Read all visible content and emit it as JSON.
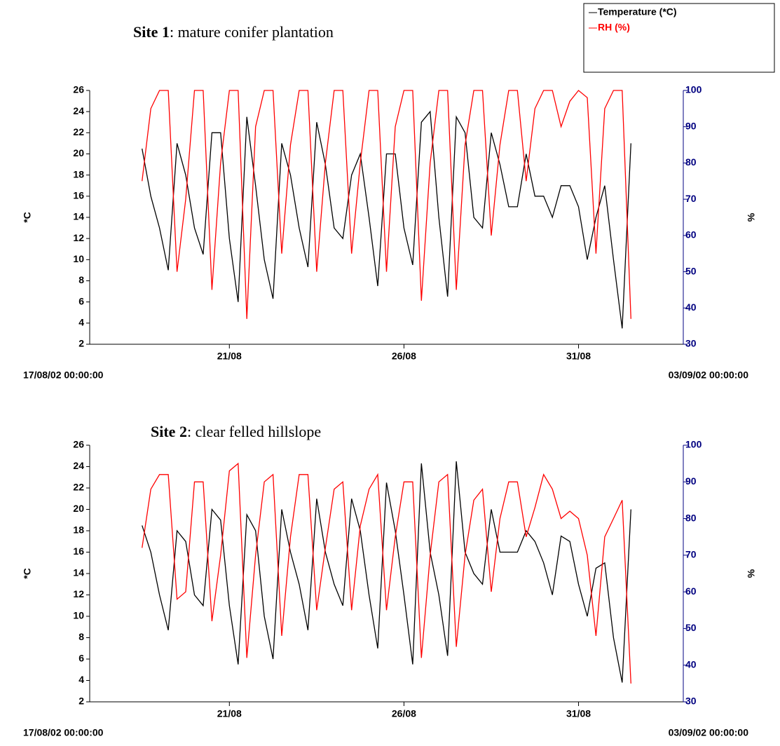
{
  "chart_data": [
    {
      "type": "line",
      "title": "Site 1: mature conifer plantation",
      "ylabel": "*C",
      "y2label": "%",
      "legend": "top-right",
      "xlim": [
        "17/08/02 00:00:00",
        "03/09/02 00:00:00"
      ],
      "xticks": [
        {
          "value": "21/08/02 00:00:00",
          "label": "21/08"
        },
        {
          "value": "26/08/02 00:00:00",
          "label": "26/08"
        },
        {
          "value": "31/08/02 00:00:00",
          "label": "31/08"
        }
      ],
      "ylim": [
        2,
        26
      ],
      "yticks": [
        2,
        4,
        6,
        8,
        10,
        12,
        14,
        16,
        18,
        20,
        22,
        24,
        26
      ],
      "y2lim": [
        30,
        100
      ],
      "y2ticks": [
        30,
        40,
        50,
        60,
        70,
        80,
        90,
        100
      ],
      "x": [
        "18/08/02 12:00:00",
        "18/08/02 18:00:00",
        "19/08/02 00:00:00",
        "19/08/02 06:00:00",
        "19/08/02 12:00:00",
        "19/08/02 18:00:00",
        "20/08/02 00:00:00",
        "20/08/02 06:00:00",
        "20/08/02 12:00:00",
        "20/08/02 18:00:00",
        "21/08/02 00:00:00",
        "21/08/02 06:00:00",
        "21/08/02 12:00:00",
        "21/08/02 18:00:00",
        "22/08/02 00:00:00",
        "22/08/02 06:00:00",
        "22/08/02 12:00:00",
        "22/08/02 18:00:00",
        "23/08/02 00:00:00",
        "23/08/02 06:00:00",
        "23/08/02 12:00:00",
        "23/08/02 18:00:00",
        "24/08/02 00:00:00",
        "24/08/02 06:00:00",
        "24/08/02 12:00:00",
        "24/08/02 18:00:00",
        "25/08/02 00:00:00",
        "25/08/02 06:00:00",
        "25/08/02 12:00:00",
        "25/08/02 18:00:00",
        "26/08/02 00:00:00",
        "26/08/02 06:00:00",
        "26/08/02 12:00:00",
        "26/08/02 18:00:00",
        "27/08/02 00:00:00",
        "27/08/02 06:00:00",
        "27/08/02 12:00:00",
        "27/08/02 18:00:00",
        "28/08/02 00:00:00",
        "28/08/02 06:00:00",
        "28/08/02 12:00:00",
        "28/08/02 18:00:00",
        "29/08/02 00:00:00",
        "29/08/02 06:00:00",
        "29/08/02 12:00:00",
        "29/08/02 18:00:00",
        "30/08/02 00:00:00",
        "30/08/02 06:00:00",
        "30/08/02 12:00:00",
        "30/08/02 18:00:00",
        "31/08/02 00:00:00",
        "31/08/02 06:00:00",
        "31/08/02 12:00:00",
        "31/08/02 18:00:00",
        "01/09/02 00:00:00",
        "01/09/02 06:00:00",
        "01/09/02 12:00:00"
      ],
      "series": [
        {
          "name": "Temperature (*C)",
          "color": "#000000",
          "values": [
            20.5,
            16,
            13,
            9,
            21,
            18,
            13,
            10.5,
            22,
            22,
            12,
            6,
            23.5,
            17,
            10,
            6.3,
            21,
            18,
            13,
            9.3,
            23,
            19,
            13,
            12,
            18,
            20,
            14,
            7.5,
            20,
            20,
            13,
            9.5,
            23,
            24,
            14,
            6.5,
            23.5,
            22,
            14,
            13,
            22,
            19,
            15,
            15,
            20,
            16,
            16,
            14,
            17,
            17,
            15,
            10,
            14,
            17,
            10,
            3.5,
            21
          ]
        },
        {
          "name": "RH (%)",
          "color": "#ff0000",
          "axis": "y2",
          "values": [
            75,
            95,
            100,
            100,
            50,
            70,
            100,
            100,
            45,
            80,
            100,
            100,
            37,
            90,
            100,
            100,
            55,
            85,
            100,
            100,
            50,
            80,
            100,
            100,
            55,
            80,
            100,
            100,
            50,
            90,
            100,
            100,
            42,
            80,
            100,
            100,
            45,
            85,
            100,
            100,
            60,
            85,
            100,
            100,
            75,
            95,
            100,
            100,
            90,
            97,
            100,
            98,
            55,
            95,
            100,
            100,
            37
          ]
        }
      ]
    },
    {
      "type": "line",
      "title": "Site 2: clear felled hillslope",
      "ylabel": "*C",
      "y2label": "%",
      "xlim": [
        "17/08/02 00:00:00",
        "03/09/02 00:00:00"
      ],
      "xticks": [
        {
          "value": "21/08/02 00:00:00",
          "label": "21/08"
        },
        {
          "value": "26/08/02 00:00:00",
          "label": "26/08"
        },
        {
          "value": "31/08/02 00:00:00",
          "label": "31/08"
        }
      ],
      "ylim": [
        2,
        26
      ],
      "yticks": [
        2,
        4,
        6,
        8,
        10,
        12,
        14,
        16,
        18,
        20,
        22,
        24,
        26
      ],
      "y2lim": [
        30,
        100
      ],
      "y2ticks": [
        30,
        40,
        50,
        60,
        70,
        80,
        90,
        100
      ],
      "x": [
        "18/08/02 12:00:00",
        "18/08/02 18:00:00",
        "19/08/02 00:00:00",
        "19/08/02 06:00:00",
        "19/08/02 12:00:00",
        "19/08/02 18:00:00",
        "20/08/02 00:00:00",
        "20/08/02 06:00:00",
        "20/08/02 12:00:00",
        "20/08/02 18:00:00",
        "21/08/02 00:00:00",
        "21/08/02 06:00:00",
        "21/08/02 12:00:00",
        "21/08/02 18:00:00",
        "22/08/02 00:00:00",
        "22/08/02 06:00:00",
        "22/08/02 12:00:00",
        "22/08/02 18:00:00",
        "23/08/02 00:00:00",
        "23/08/02 06:00:00",
        "23/08/02 12:00:00",
        "23/08/02 18:00:00",
        "24/08/02 00:00:00",
        "24/08/02 06:00:00",
        "24/08/02 12:00:00",
        "24/08/02 18:00:00",
        "25/08/02 00:00:00",
        "25/08/02 06:00:00",
        "25/08/02 12:00:00",
        "25/08/02 18:00:00",
        "26/08/02 00:00:00",
        "26/08/02 06:00:00",
        "26/08/02 12:00:00",
        "26/08/02 18:00:00",
        "27/08/02 00:00:00",
        "27/08/02 06:00:00",
        "27/08/02 12:00:00",
        "27/08/02 18:00:00",
        "28/08/02 00:00:00",
        "28/08/02 06:00:00",
        "28/08/02 12:00:00",
        "28/08/02 18:00:00",
        "29/08/02 00:00:00",
        "29/08/02 06:00:00",
        "29/08/02 12:00:00",
        "29/08/02 18:00:00",
        "30/08/02 00:00:00",
        "30/08/02 06:00:00",
        "30/08/02 12:00:00",
        "30/08/02 18:00:00",
        "31/08/02 00:00:00",
        "31/08/02 06:00:00",
        "31/08/02 12:00:00",
        "31/08/02 18:00:00",
        "01/09/02 00:00:00",
        "01/09/02 06:00:00",
        "01/09/02 12:00:00"
      ],
      "series": [
        {
          "name": "Temperature (*C)",
          "color": "#000000",
          "values": [
            18.5,
            16,
            12,
            8.7,
            18,
            17,
            12,
            11,
            20,
            19,
            11,
            5.5,
            19.5,
            18,
            10,
            6,
            20,
            16,
            13,
            8.7,
            21,
            16,
            13,
            11,
            21,
            18,
            12,
            7,
            22.5,
            18,
            12,
            5.5,
            24.3,
            16,
            12,
            6.3,
            24.5,
            16,
            14,
            13,
            20,
            16,
            16,
            16,
            18,
            17,
            15,
            12,
            17.5,
            17,
            13,
            10,
            14.5,
            15,
            8,
            3.8,
            20
          ]
        },
        {
          "name": "RH (%)",
          "color": "#ff0000",
          "axis": "y2",
          "values": [
            72,
            88,
            92,
            92,
            58,
            60,
            90,
            90,
            52,
            70,
            93,
            95,
            42,
            70,
            90,
            92,
            48,
            75,
            92,
            92,
            55,
            72,
            88,
            90,
            55,
            78,
            88,
            92,
            55,
            75,
            90,
            90,
            42,
            70,
            90,
            92,
            45,
            70,
            85,
            88,
            60,
            80,
            90,
            90,
            75,
            83,
            92,
            88,
            80,
            82,
            80,
            70,
            48,
            75,
            80,
            85,
            35
          ]
        }
      ]
    }
  ]
}
